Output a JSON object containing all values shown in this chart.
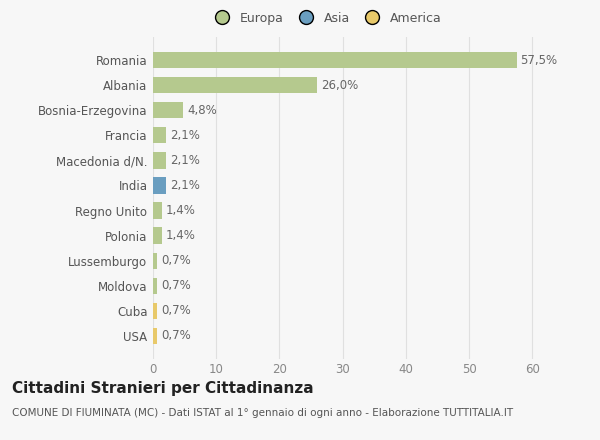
{
  "title": "Cittadini Stranieri per Cittadinanza",
  "subtitle": "COMUNE DI FIUMINATA (MC) - Dati ISTAT al 1° gennaio di ogni anno - Elaborazione TUTTITALIA.IT",
  "categories": [
    "Romania",
    "Albania",
    "Bosnia-Erzegovina",
    "Francia",
    "Macedonia d/N.",
    "India",
    "Regno Unito",
    "Polonia",
    "Lussemburgo",
    "Moldova",
    "Cuba",
    "USA"
  ],
  "values": [
    57.5,
    26.0,
    4.8,
    2.1,
    2.1,
    2.1,
    1.4,
    1.4,
    0.7,
    0.7,
    0.7,
    0.7
  ],
  "labels": [
    "57,5%",
    "26,0%",
    "4,8%",
    "2,1%",
    "2,1%",
    "2,1%",
    "1,4%",
    "1,4%",
    "0,7%",
    "0,7%",
    "0,7%",
    "0,7%"
  ],
  "colors": [
    "#b5c98e",
    "#b5c98e",
    "#b5c98e",
    "#b5c98e",
    "#b5c98e",
    "#6a9ec0",
    "#b5c98e",
    "#b5c98e",
    "#b5c98e",
    "#b5c98e",
    "#e8c96a",
    "#e8c96a"
  ],
  "legend": [
    {
      "label": "Europa",
      "color": "#b5c98e"
    },
    {
      "label": "Asia",
      "color": "#6a9ec0"
    },
    {
      "label": "America",
      "color": "#e8c96a"
    }
  ],
  "xlim": [
    0,
    65
  ],
  "xticks": [
    0,
    10,
    20,
    30,
    40,
    50,
    60
  ],
  "background_color": "#f7f7f7",
  "bar_height": 0.65,
  "grid_color": "#e0e0e0",
  "title_fontsize": 11,
  "subtitle_fontsize": 7.5,
  "tick_fontsize": 8.5,
  "label_fontsize": 8.5
}
